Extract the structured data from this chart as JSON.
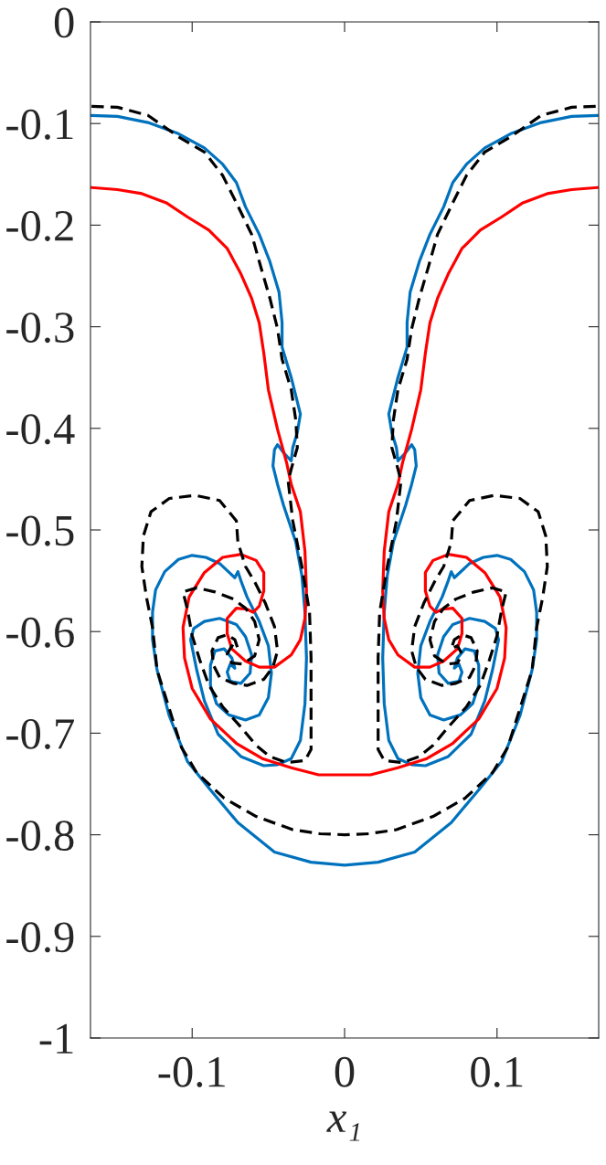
{
  "chart_data": {
    "type": "line",
    "xlabel": "x₁",
    "xlim": [
      -0.1667,
      0.1667
    ],
    "xticks": [
      -0.1,
      0,
      0.1
    ],
    "ylim": [
      -1,
      0
    ],
    "yticks": [
      -1,
      -0.9,
      -0.8,
      -0.7,
      -0.6,
      -0.5,
      -0.4,
      -0.3,
      -0.2,
      -0.1,
      0
    ],
    "series": [
      {
        "color": "#0072bd",
        "line_style": "solid",
        "x": [
          -0.166,
          -0.149,
          -0.129,
          -0.109,
          -0.092,
          -0.08,
          -0.071,
          -0.065,
          -0.056,
          -0.049,
          -0.043,
          -0.041,
          -0.041,
          -0.035,
          -0.029,
          -0.031,
          -0.034,
          -0.035,
          -0.04,
          -0.044,
          -0.046,
          -0.047,
          -0.044,
          -0.04,
          -0.032,
          -0.028,
          -0.026,
          -0.025,
          -0.026,
          -0.029,
          -0.035,
          -0.044,
          -0.053,
          -0.068,
          -0.083,
          -0.092,
          -0.097,
          -0.101,
          -0.099,
          -0.092,
          -0.082,
          -0.071,
          -0.065,
          -0.061,
          -0.062,
          -0.068,
          -0.075,
          -0.077,
          -0.075,
          -0.072,
          -0.074,
          -0.079,
          -0.085,
          -0.088,
          -0.088,
          -0.084,
          -0.076,
          -0.065,
          -0.056,
          -0.05,
          -0.048,
          -0.05,
          -0.056,
          -0.064,
          -0.068,
          -0.07,
          -0.072,
          -0.082,
          -0.091,
          -0.1,
          -0.109,
          -0.118,
          -0.124,
          -0.126,
          -0.126,
          -0.123,
          -0.115,
          -0.103,
          -0.089,
          -0.07,
          -0.046,
          -0.022,
          0,
          0.022,
          0.046,
          0.07,
          0.089,
          0.103,
          0.115,
          0.123,
          0.126,
          0.126,
          0.124,
          0.118,
          0.109,
          0.1,
          0.091,
          0.082,
          0.072,
          0.07,
          0.068,
          0.064,
          0.056,
          0.05,
          0.048,
          0.05,
          0.056,
          0.065,
          0.076,
          0.084,
          0.088,
          0.088,
          0.085,
          0.079,
          0.074,
          0.072,
          0.075,
          0.077,
          0.075,
          0.068,
          0.062,
          0.061,
          0.065,
          0.071,
          0.082,
          0.092,
          0.099,
          0.101,
          0.097,
          0.092,
          0.083,
          0.068,
          0.053,
          0.044,
          0.035,
          0.029,
          0.026,
          0.025,
          0.026,
          0.028,
          0.032,
          0.04,
          0.044,
          0.047,
          0.046,
          0.044,
          0.04,
          0.035,
          0.034,
          0.031,
          0.029,
          0.035,
          0.041,
          0.041,
          0.043,
          0.049,
          0.056,
          0.065,
          0.071,
          0.08,
          0.092,
          0.109,
          0.129,
          0.149,
          0.166
        ],
        "values": [
          -0.092,
          -0.093,
          -0.099,
          -0.11,
          -0.124,
          -0.14,
          -0.158,
          -0.182,
          -0.209,
          -0.236,
          -0.266,
          -0.296,
          -0.32,
          -0.35,
          -0.386,
          -0.404,
          -0.419,
          -0.432,
          -0.424,
          -0.416,
          -0.421,
          -0.437,
          -0.455,
          -0.476,
          -0.512,
          -0.545,
          -0.581,
          -0.626,
          -0.671,
          -0.707,
          -0.725,
          -0.731,
          -0.732,
          -0.723,
          -0.701,
          -0.668,
          -0.638,
          -0.608,
          -0.597,
          -0.59,
          -0.587,
          -0.593,
          -0.605,
          -0.623,
          -0.641,
          -0.651,
          -0.649,
          -0.64,
          -0.632,
          -0.636,
          -0.626,
          -0.617,
          -0.619,
          -0.633,
          -0.653,
          -0.671,
          -0.682,
          -0.687,
          -0.682,
          -0.665,
          -0.641,
          -0.614,
          -0.59,
          -0.566,
          -0.55,
          -0.541,
          -0.547,
          -0.533,
          -0.527,
          -0.525,
          -0.529,
          -0.541,
          -0.559,
          -0.581,
          -0.608,
          -0.638,
          -0.683,
          -0.728,
          -0.754,
          -0.788,
          -0.817,
          -0.827,
          -0.83,
          -0.827,
          -0.817,
          -0.788,
          -0.754,
          -0.728,
          -0.683,
          -0.638,
          -0.608,
          -0.581,
          -0.559,
          -0.541,
          -0.529,
          -0.525,
          -0.527,
          -0.533,
          -0.547,
          -0.541,
          -0.55,
          -0.566,
          -0.59,
          -0.614,
          -0.641,
          -0.665,
          -0.682,
          -0.687,
          -0.682,
          -0.671,
          -0.653,
          -0.633,
          -0.619,
          -0.617,
          -0.626,
          -0.636,
          -0.632,
          -0.64,
          -0.649,
          -0.651,
          -0.641,
          -0.623,
          -0.605,
          -0.593,
          -0.587,
          -0.59,
          -0.597,
          -0.608,
          -0.638,
          -0.668,
          -0.701,
          -0.723,
          -0.732,
          -0.731,
          -0.725,
          -0.707,
          -0.671,
          -0.626,
          -0.581,
          -0.545,
          -0.512,
          -0.476,
          -0.455,
          -0.437,
          -0.421,
          -0.416,
          -0.424,
          -0.432,
          -0.419,
          -0.404,
          -0.386,
          -0.35,
          -0.32,
          -0.296,
          -0.266,
          -0.236,
          -0.209,
          -0.182,
          -0.158,
          -0.14,
          -0.124,
          -0.11,
          -0.099,
          -0.093,
          -0.092
        ]
      },
      {
        "color": "#ff0000",
        "line_style": "solid",
        "x": [
          -0.166,
          -0.149,
          -0.133,
          -0.117,
          -0.103,
          -0.089,
          -0.077,
          -0.068,
          -0.061,
          -0.056,
          -0.053,
          -0.05,
          -0.044,
          -0.038,
          -0.035,
          -0.029,
          -0.026,
          -0.025,
          -0.026,
          -0.029,
          -0.035,
          -0.046,
          -0.056,
          -0.065,
          -0.074,
          -0.077,
          -0.077,
          -0.071,
          -0.064,
          -0.06,
          -0.056,
          -0.053,
          -0.053,
          -0.058,
          -0.068,
          -0.08,
          -0.092,
          -0.102,
          -0.106,
          -0.105,
          -0.1,
          -0.088,
          -0.071,
          -0.054,
          -0.035,
          -0.017,
          0,
          0.017,
          0.035,
          0.054,
          0.071,
          0.088,
          0.1,
          0.105,
          0.106,
          0.102,
          0.092,
          0.08,
          0.068,
          0.058,
          0.053,
          0.053,
          0.056,
          0.06,
          0.064,
          0.071,
          0.077,
          0.077,
          0.074,
          0.065,
          0.056,
          0.046,
          0.035,
          0.029,
          0.026,
          0.025,
          0.026,
          0.029,
          0.035,
          0.038,
          0.044,
          0.05,
          0.053,
          0.056,
          0.061,
          0.068,
          0.077,
          0.089,
          0.103,
          0.117,
          0.133,
          0.149,
          0.166
        ],
        "values": [
          -0.163,
          -0.165,
          -0.169,
          -0.178,
          -0.192,
          -0.205,
          -0.223,
          -0.248,
          -0.272,
          -0.296,
          -0.326,
          -0.362,
          -0.401,
          -0.434,
          -0.455,
          -0.482,
          -0.521,
          -0.56,
          -0.587,
          -0.608,
          -0.623,
          -0.635,
          -0.635,
          -0.629,
          -0.617,
          -0.602,
          -0.587,
          -0.577,
          -0.578,
          -0.581,
          -0.575,
          -0.56,
          -0.542,
          -0.53,
          -0.524,
          -0.527,
          -0.542,
          -0.566,
          -0.596,
          -0.626,
          -0.656,
          -0.686,
          -0.71,
          -0.725,
          -0.734,
          -0.741,
          -0.741,
          -0.741,
          -0.734,
          -0.725,
          -0.71,
          -0.686,
          -0.656,
          -0.626,
          -0.596,
          -0.566,
          -0.542,
          -0.527,
          -0.524,
          -0.53,
          -0.542,
          -0.56,
          -0.575,
          -0.581,
          -0.578,
          -0.577,
          -0.587,
          -0.602,
          -0.617,
          -0.629,
          -0.635,
          -0.635,
          -0.623,
          -0.608,
          -0.587,
          -0.56,
          -0.521,
          -0.482,
          -0.455,
          -0.434,
          -0.401,
          -0.362,
          -0.326,
          -0.296,
          -0.272,
          -0.248,
          -0.223,
          -0.205,
          -0.192,
          -0.178,
          -0.169,
          -0.165,
          -0.163
        ]
      },
      {
        "color": "#000000",
        "line_style": "dashed",
        "x": [
          -0.166,
          -0.149,
          -0.129,
          -0.109,
          -0.092,
          -0.08,
          -0.071,
          -0.061,
          -0.055,
          -0.049,
          -0.044,
          -0.041,
          -0.035,
          -0.032,
          -0.031,
          -0.035,
          -0.037,
          -0.034,
          -0.028,
          -0.023,
          -0.022,
          -0.022,
          -0.022,
          -0.026,
          -0.038,
          -0.049,
          -0.058,
          -0.068,
          -0.08,
          -0.089,
          -0.095,
          -0.1,
          -0.103,
          -0.106,
          -0.097,
          -0.085,
          -0.073,
          -0.065,
          -0.059,
          -0.056,
          -0.059,
          -0.067,
          -0.074,
          -0.077,
          -0.074,
          -0.07,
          -0.072,
          -0.077,
          -0.083,
          -0.087,
          -0.086,
          -0.082,
          -0.073,
          -0.064,
          -0.053,
          -0.047,
          -0.044,
          -0.046,
          -0.052,
          -0.059,
          -0.065,
          -0.07,
          -0.071,
          -0.082,
          -0.098,
          -0.115,
          -0.127,
          -0.132,
          -0.133,
          -0.13,
          -0.126,
          -0.123,
          -0.115,
          -0.107,
          -0.097,
          -0.079,
          -0.058,
          -0.034,
          -0.016,
          0,
          0.016,
          0.034,
          0.058,
          0.079,
          0.097,
          0.107,
          0.115,
          0.123,
          0.126,
          0.13,
          0.133,
          0.132,
          0.127,
          0.115,
          0.098,
          0.082,
          0.071,
          0.07,
          0.065,
          0.059,
          0.052,
          0.046,
          0.044,
          0.047,
          0.053,
          0.064,
          0.073,
          0.082,
          0.086,
          0.087,
          0.083,
          0.077,
          0.072,
          0.07,
          0.074,
          0.077,
          0.074,
          0.067,
          0.059,
          0.056,
          0.059,
          0.065,
          0.073,
          0.085,
          0.097,
          0.106,
          0.103,
          0.1,
          0.095,
          0.089,
          0.08,
          0.068,
          0.058,
          0.049,
          0.038,
          0.026,
          0.022,
          0.022,
          0.022,
          0.023,
          0.028,
          0.034,
          0.037,
          0.035,
          0.031,
          0.032,
          0.035,
          0.041,
          0.044,
          0.049,
          0.055,
          0.061,
          0.071,
          0.08,
          0.092,
          0.109,
          0.129,
          0.149,
          0.166
        ],
        "values": [
          -0.083,
          -0.084,
          -0.092,
          -0.113,
          -0.128,
          -0.151,
          -0.178,
          -0.209,
          -0.241,
          -0.272,
          -0.302,
          -0.332,
          -0.362,
          -0.392,
          -0.419,
          -0.44,
          -0.452,
          -0.491,
          -0.536,
          -0.581,
          -0.626,
          -0.671,
          -0.716,
          -0.727,
          -0.729,
          -0.723,
          -0.712,
          -0.694,
          -0.674,
          -0.653,
          -0.628,
          -0.604,
          -0.579,
          -0.561,
          -0.557,
          -0.561,
          -0.568,
          -0.577,
          -0.59,
          -0.608,
          -0.624,
          -0.632,
          -0.631,
          -0.622,
          -0.614,
          -0.617,
          -0.608,
          -0.603,
          -0.606,
          -0.619,
          -0.633,
          -0.645,
          -0.651,
          -0.653,
          -0.647,
          -0.635,
          -0.619,
          -0.595,
          -0.572,
          -0.551,
          -0.536,
          -0.512,
          -0.491,
          -0.471,
          -0.466,
          -0.469,
          -0.482,
          -0.506,
          -0.536,
          -0.566,
          -0.596,
          -0.638,
          -0.676,
          -0.714,
          -0.739,
          -0.764,
          -0.782,
          -0.795,
          -0.799,
          -0.8,
          -0.799,
          -0.795,
          -0.782,
          -0.764,
          -0.739,
          -0.714,
          -0.676,
          -0.638,
          -0.596,
          -0.566,
          -0.536,
          -0.506,
          -0.482,
          -0.469,
          -0.466,
          -0.471,
          -0.491,
          -0.512,
          -0.536,
          -0.551,
          -0.572,
          -0.595,
          -0.619,
          -0.635,
          -0.647,
          -0.653,
          -0.651,
          -0.645,
          -0.633,
          -0.619,
          -0.606,
          -0.603,
          -0.608,
          -0.617,
          -0.614,
          -0.622,
          -0.631,
          -0.632,
          -0.624,
          -0.608,
          -0.59,
          -0.577,
          -0.568,
          -0.561,
          -0.557,
          -0.561,
          -0.579,
          -0.604,
          -0.628,
          -0.653,
          -0.674,
          -0.694,
          -0.712,
          -0.723,
          -0.729,
          -0.727,
          -0.716,
          -0.671,
          -0.626,
          -0.581,
          -0.536,
          -0.491,
          -0.452,
          -0.44,
          -0.419,
          -0.392,
          -0.362,
          -0.332,
          -0.302,
          -0.272,
          -0.241,
          -0.209,
          -0.178,
          -0.151,
          -0.128,
          -0.113,
          -0.092,
          -0.084,
          -0.083
        ]
      }
    ]
  }
}
